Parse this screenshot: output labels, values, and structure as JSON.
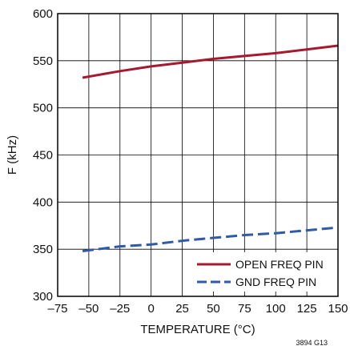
{
  "chart_data": {
    "type": "line",
    "xlabel": "TEMPERATURE (°C)",
    "ylabel": "F (kHz)",
    "xlim": [
      -75,
      150
    ],
    "ylim": [
      300,
      600
    ],
    "x_ticks": [
      -75,
      -50,
      -25,
      0,
      25,
      50,
      75,
      100,
      125,
      150
    ],
    "y_ticks": [
      300,
      350,
      400,
      450,
      500,
      550,
      600
    ],
    "x_tick_labels": [
      "–75",
      "–50",
      "–25",
      "0",
      "25",
      "50",
      "75",
      "100",
      "125",
      "150"
    ],
    "y_tick_labels": [
      "300",
      "350",
      "400",
      "450",
      "500",
      "550",
      "600"
    ],
    "grid": true,
    "legend_position": "bottom-right",
    "series": [
      {
        "name": "OPEN FREQ PIN",
        "color": "#a6192e",
        "style": "solid",
        "x": [
          -55,
          -25,
          0,
          25,
          50,
          75,
          100,
          125,
          150
        ],
        "y": [
          532,
          539,
          544,
          548,
          552,
          555,
          558,
          562,
          566
        ]
      },
      {
        "name": "GND FREQ PIN",
        "color": "#2e5aa8",
        "style": "dashed",
        "x": [
          -55,
          -25,
          0,
          25,
          50,
          75,
          100,
          125,
          150
        ],
        "y": [
          348,
          353,
          355,
          359,
          362,
          365,
          367,
          370,
          373
        ]
      }
    ]
  },
  "figure_code": "3894 G13"
}
